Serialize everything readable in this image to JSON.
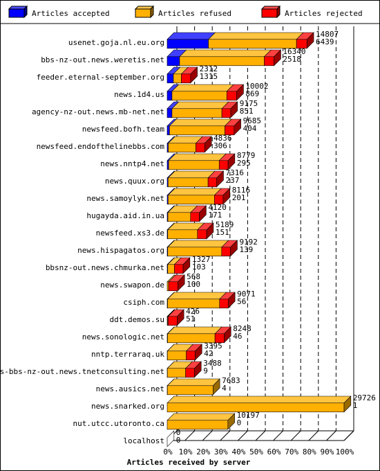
{
  "chart_data": {
    "type": "bar",
    "orientation": "horizontal",
    "stacked": true,
    "style": "3d",
    "xlabel": "Articles received by server",
    "xlim": [
      0,
      100
    ],
    "xunit": "%",
    "x_ticks": [
      "0%",
      "10%",
      "20%",
      "30%",
      "40%",
      "50%",
      "60%",
      "70%",
      "80%",
      "90%",
      "100%"
    ],
    "grid": "vertical dashed",
    "legend_position": "top",
    "series": [
      {
        "name": "Articles accepted",
        "color": "#0000ff"
      },
      {
        "name": "Articles refused",
        "color": "#ffb000"
      },
      {
        "name": "Articles rejected",
        "color": "#ff0000"
      }
    ],
    "categories": [
      "usenet.goja.nl.eu.org",
      "bbs-nz-out.news.weretis.net",
      "feeder.eternal-september.org",
      "news.1d4.us",
      "agency-nz-out.news.mb-net.net",
      "newsfeed.bofh.team",
      "newsfeed.endofthelinebbs.com",
      "news.nntp4.net",
      "news.quux.org",
      "news.samoylyk.net",
      "hugayda.aid.in.ua",
      "newsfeed.xs3.de",
      "news.hispagatos.org",
      "bbsnz-out.news.chmurka.net",
      "news.swapon.de",
      "csiph.com",
      "ddt.demos.su",
      "news.sonologic.net",
      "nntp.terraraq.uk",
      "news-bbs-nz-out.news.tnetconsulting.net",
      "news.ausics.net",
      "news.snarked.org",
      "nut.utcc.utoronto.ca",
      "localhost"
    ],
    "labels_top": [
      "14807",
      "16340",
      "2312",
      "10002",
      "9175",
      "9685",
      "4836",
      "8779",
      "7316",
      "8116",
      "4120",
      "5189",
      "9192",
      "1327",
      "568",
      "9071",
      "426",
      "8248",
      "3395",
      "3488",
      "7683",
      "29726",
      "10197",
      "0"
    ],
    "labels_bottom": [
      "6439",
      "2518",
      "1315",
      "869",
      "851",
      "404",
      "306",
      "295",
      "237",
      "201",
      "171",
      "151",
      "139",
      "103",
      "100",
      "56",
      "51",
      "46",
      "42",
      "9",
      "4",
      "1",
      "0",
      "0"
    ],
    "values_pct": {
      "accepted": [
        23.3,
        7.0,
        3.5,
        2.7,
        2.7,
        1.3,
        0.6,
        0.8,
        0.5,
        0.5,
        0.4,
        0.3,
        0.3,
        0.3,
        0.0,
        0.2,
        0.2,
        0.2,
        0.1,
        0.1,
        0.1,
        0.0,
        0.0,
        0.0
      ],
      "refused": [
        49.8,
        47.9,
        4.5,
        31.0,
        28.2,
        31.3,
        15.6,
        28.6,
        22.6,
        26.2,
        12.8,
        16.8,
        30.5,
        3.8,
        0.8,
        29.4,
        0.3,
        26.8,
        10.7,
        10.3,
        25.8,
        100.0,
        34.3,
        0.0
      ],
      "rejected": [
        5.9,
        5.5,
        5.2,
        5.6,
        5.0,
        5.2,
        5.0,
        5.0,
        4.9,
        4.9,
        5.0,
        5.2,
        5.0,
        4.9,
        5.2,
        4.9,
        5.1,
        5.2,
        5.0,
        5.0,
        0.0,
        0.0,
        0.0,
        0.0
      ]
    }
  }
}
